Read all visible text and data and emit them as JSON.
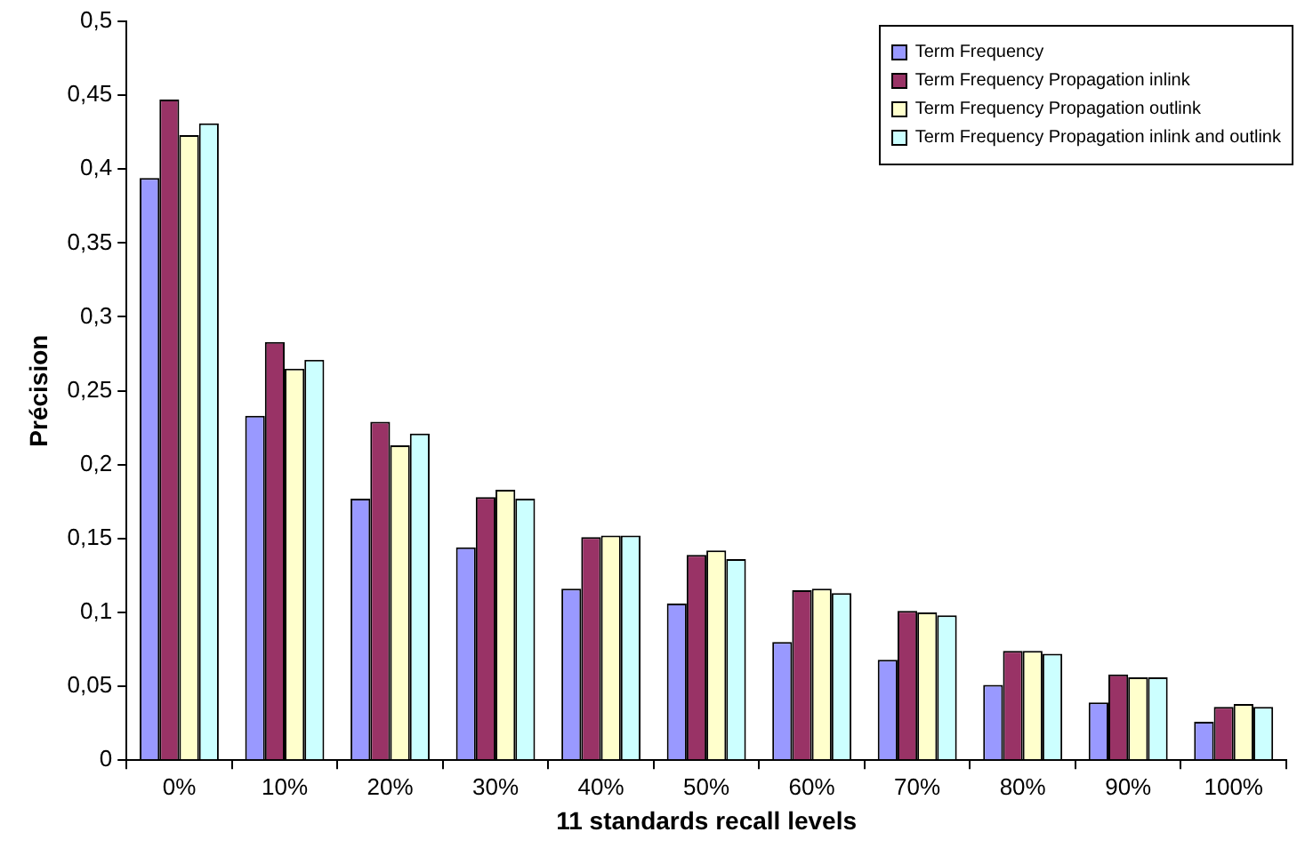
{
  "chart_data": {
    "type": "bar",
    "xlabel": "11 standards recall levels",
    "ylabel": "Précision",
    "categories": [
      "0%",
      "10%",
      "20%",
      "30%",
      "40%",
      "50%",
      "60%",
      "70%",
      "80%",
      "90%",
      "100%"
    ],
    "series": [
      {
        "name": "Term Frequency",
        "color": "#9999ff",
        "values": [
          0.394,
          0.233,
          0.177,
          0.144,
          0.116,
          0.106,
          0.08,
          0.068,
          0.051,
          0.039,
          0.026
        ]
      },
      {
        "name": "Term Frequency Propagation inlink",
        "color": "#993366",
        "values": [
          0.447,
          0.283,
          0.229,
          0.178,
          0.151,
          0.139,
          0.115,
          0.101,
          0.074,
          0.058,
          0.036
        ]
      },
      {
        "name": "Term Frequency Propagation outlink",
        "color": "#ffffcc",
        "values": [
          0.423,
          0.265,
          0.213,
          0.183,
          0.152,
          0.142,
          0.116,
          0.1,
          0.074,
          0.056,
          0.038
        ]
      },
      {
        "name": "Term Frequency Propagation inlink and outlink",
        "color": "#ccffff",
        "values": [
          0.431,
          0.271,
          0.221,
          0.177,
          0.152,
          0.136,
          0.113,
          0.098,
          0.072,
          0.056,
          0.036
        ]
      }
    ],
    "ylim": [
      0,
      0.5
    ],
    "yticks": [
      0,
      {
        "value": 0.05,
        "label": "0,05"
      },
      {
        "value": 0.1,
        "label": "0,1"
      },
      {
        "value": 0.15,
        "label": "0,15"
      },
      {
        "value": 0.2,
        "label": "0,2"
      },
      {
        "value": 0.25,
        "label": "0,25"
      },
      {
        "value": 0.3,
        "label": "0,3"
      },
      {
        "value": 0.35,
        "label": "0,35"
      },
      {
        "value": 0.4,
        "label": "0,4"
      },
      {
        "value": 0.45,
        "label": "0,45"
      },
      {
        "value": 0.5,
        "label": "0,5"
      }
    ],
    "grid": false,
    "legend": "top right"
  }
}
